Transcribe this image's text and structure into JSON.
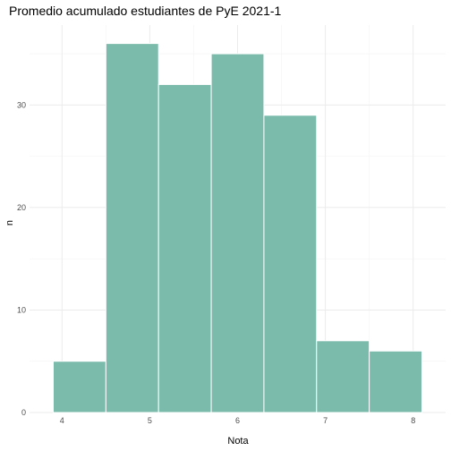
{
  "chart_data": {
    "type": "bar",
    "title": "Promedio acumulado estudiantes de PyE 2021-1",
    "xlabel": "Nota",
    "ylabel": "n",
    "bins": [
      {
        "x0": 3.9,
        "x1": 4.5,
        "count": 5
      },
      {
        "x0": 4.5,
        "x1": 5.1,
        "count": 36
      },
      {
        "x0": 5.1,
        "x1": 5.7,
        "count": 32
      },
      {
        "x0": 5.7,
        "x1": 6.3,
        "count": 35
      },
      {
        "x0": 6.3,
        "x1": 6.9,
        "count": 29
      },
      {
        "x0": 6.9,
        "x1": 7.5,
        "count": 7
      },
      {
        "x0": 7.5,
        "x1": 8.1,
        "count": 6
      }
    ],
    "xlim": [
      3.63,
      8.37
    ],
    "ylim": [
      0,
      37.8
    ],
    "x_ticks": [
      4,
      5,
      6,
      7,
      8
    ],
    "y_ticks": [
      0,
      10,
      20,
      30
    ],
    "grid": true,
    "colors": {
      "bar_fill": "#7bbbab",
      "bar_stroke": "#ffffff"
    }
  }
}
